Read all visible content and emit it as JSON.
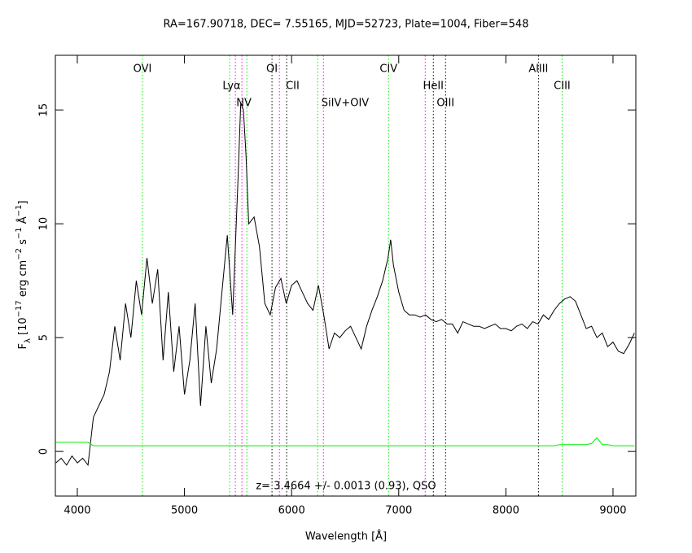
{
  "chart_data": {
    "type": "line",
    "title": "RA=167.90718, DEC= 7.55165, MJD=52723, Plate=1004, Fiber=548",
    "annotation": "z= 3.4664 +/- 0.0013 (0.93), QSO",
    "xlabel": "Wavelength [Å]",
    "ylabel": [
      "F",
      "λ",
      " [10",
      "−17",
      " erg cm",
      "−2",
      " s",
      "−1",
      " Å",
      "−1",
      "]"
    ],
    "xlim": [
      3795,
      9213
    ],
    "ylim": [
      -1.96,
      17.4
    ],
    "xticks": [
      4000,
      5000,
      6000,
      7000,
      8000,
      9000
    ],
    "yticks": [
      0,
      5,
      10,
      15
    ],
    "x": [
      3800,
      3850,
      3900,
      3950,
      4000,
      4050,
      4100,
      4150,
      4200,
      4250,
      4300,
      4350,
      4400,
      4450,
      4500,
      4550,
      4600,
      4650,
      4700,
      4750,
      4800,
      4850,
      4900,
      4950,
      5000,
      5050,
      5100,
      5150,
      5200,
      5250,
      5300,
      5350,
      5400,
      5450,
      5500,
      5525,
      5550,
      5575,
      5600,
      5650,
      5700,
      5750,
      5800,
      5850,
      5900,
      5950,
      6000,
      6050,
      6100,
      6150,
      6200,
      6250,
      6300,
      6350,
      6400,
      6450,
      6500,
      6550,
      6600,
      6650,
      6700,
      6750,
      6800,
      6850,
      6900,
      6925,
      6950,
      7000,
      7050,
      7100,
      7150,
      7200,
      7250,
      7300,
      7350,
      7400,
      7450,
      7500,
      7550,
      7600,
      7650,
      7700,
      7750,
      7800,
      7850,
      7900,
      7950,
      8000,
      8050,
      8100,
      8150,
      8200,
      8250,
      8300,
      8350,
      8400,
      8450,
      8500,
      8550,
      8600,
      8650,
      8700,
      8750,
      8800,
      8850,
      8900,
      8950,
      9000,
      9050,
      9100,
      9150,
      9200
    ],
    "series": [
      {
        "color": "#000000",
        "values": [
          -0.5,
          -0.3,
          -0.6,
          -0.2,
          -0.5,
          -0.3,
          -0.6,
          1.5,
          2.0,
          2.5,
          3.5,
          5.5,
          4.0,
          6.5,
          5.0,
          7.5,
          6.0,
          8.5,
          6.5,
          8.0,
          4.0,
          7.0,
          3.5,
          5.5,
          2.5,
          4.0,
          6.5,
          2.0,
          5.5,
          3.0,
          4.5,
          7.0,
          9.5,
          6.0,
          12.0,
          15.3,
          15.0,
          13.0,
          10.0,
          10.3,
          9.0,
          6.5,
          6.0,
          7.2,
          7.6,
          6.5,
          7.3,
          7.5,
          7.0,
          6.5,
          6.2,
          7.3,
          6.0,
          4.5,
          5.2,
          5.0,
          5.3,
          5.5,
          5.0,
          4.5,
          5.5,
          6.2,
          6.8,
          7.5,
          8.5,
          9.3,
          8.2,
          7.0,
          6.2,
          6.0,
          6.0,
          5.9,
          6.0,
          5.8,
          5.7,
          5.8,
          5.6,
          5.6,
          5.2,
          5.7,
          5.6,
          5.5,
          5.5,
          5.4,
          5.5,
          5.6,
          5.4,
          5.4,
          5.3,
          5.5,
          5.6,
          5.4,
          5.7,
          5.6,
          6.0,
          5.8,
          6.2,
          6.5,
          6.7,
          6.8,
          6.6,
          6.0,
          5.4,
          5.5,
          5.0,
          5.2,
          4.6,
          4.8,
          4.4,
          4.3,
          4.7,
          5.2
        ]
      },
      {
        "color": "#00ee00",
        "values": [
          0.4,
          0.4,
          0.4,
          0.4,
          0.4,
          0.4,
          0.4,
          0.25,
          0.25,
          0.25,
          0.25,
          0.25,
          0.25,
          0.25,
          0.25,
          0.25,
          0.25,
          0.25,
          0.25,
          0.25,
          0.25,
          0.25,
          0.25,
          0.25,
          0.25,
          0.25,
          0.25,
          0.25,
          0.25,
          0.25,
          0.25,
          0.25,
          0.25,
          0.25,
          0.25,
          0.25,
          0.25,
          0.25,
          0.25,
          0.25,
          0.25,
          0.25,
          0.25,
          0.25,
          0.25,
          0.25,
          0.25,
          0.25,
          0.25,
          0.25,
          0.25,
          0.25,
          0.25,
          0.25,
          0.25,
          0.25,
          0.25,
          0.25,
          0.25,
          0.25,
          0.25,
          0.25,
          0.25,
          0.25,
          0.25,
          0.25,
          0.25,
          0.25,
          0.25,
          0.25,
          0.25,
          0.25,
          0.25,
          0.25,
          0.25,
          0.25,
          0.25,
          0.25,
          0.25,
          0.25,
          0.25,
          0.25,
          0.25,
          0.25,
          0.25,
          0.25,
          0.25,
          0.25,
          0.25,
          0.25,
          0.25,
          0.25,
          0.25,
          0.25,
          0.25,
          0.25,
          0.25,
          0.3,
          0.3,
          0.3,
          0.3,
          0.3,
          0.3,
          0.35,
          0.6,
          0.3,
          0.3,
          0.25,
          0.25,
          0.25,
          0.25,
          0.25
        ]
      }
    ],
    "markers": [
      {
        "x": 4608,
        "color": "#00ee00"
      },
      {
        "x": 5422,
        "color": "#00ee00"
      },
      {
        "x": 5475,
        "color": "#ff00ff"
      },
      {
        "x": 5536,
        "color": "#ff00ff"
      },
      {
        "x": 5582,
        "color": "#00ee00"
      },
      {
        "x": 5817,
        "color": "#000000"
      },
      {
        "x": 5886,
        "color": "#ff00ff"
      },
      {
        "x": 5954,
        "color": "#000000"
      },
      {
        "x": 6243,
        "color": "#00ee00"
      },
      {
        "x": 6297,
        "color": "#ff00ff"
      },
      {
        "x": 6905,
        "color": "#00ee00"
      },
      {
        "x": 7247,
        "color": "#ff00ff"
      },
      {
        "x": 7323,
        "color": "#000000"
      },
      {
        "x": 7437,
        "color": "#000000"
      },
      {
        "x": 8304,
        "color": "#000000"
      },
      {
        "x": 8525,
        "color": "#00ee00"
      }
    ],
    "line_labels": [
      {
        "label": "OVI",
        "x": 4608
      },
      {
        "label": "Lyα",
        "x": 5440
      },
      {
        "label": "NV",
        "x": 5555
      },
      {
        "label": "OI",
        "x": 5817
      },
      {
        "label": "CII",
        "x": 6010
      },
      {
        "label": "SiIV+OIV",
        "x": 6500
      },
      {
        "label": "CIV",
        "x": 6905
      },
      {
        "label": "HeII",
        "x": 7323
      },
      {
        "label": "OIII",
        "x": 7437
      },
      {
        "label": "AlIII",
        "x": 8304
      },
      {
        "label": "CIII",
        "x": 8525
      }
    ]
  }
}
